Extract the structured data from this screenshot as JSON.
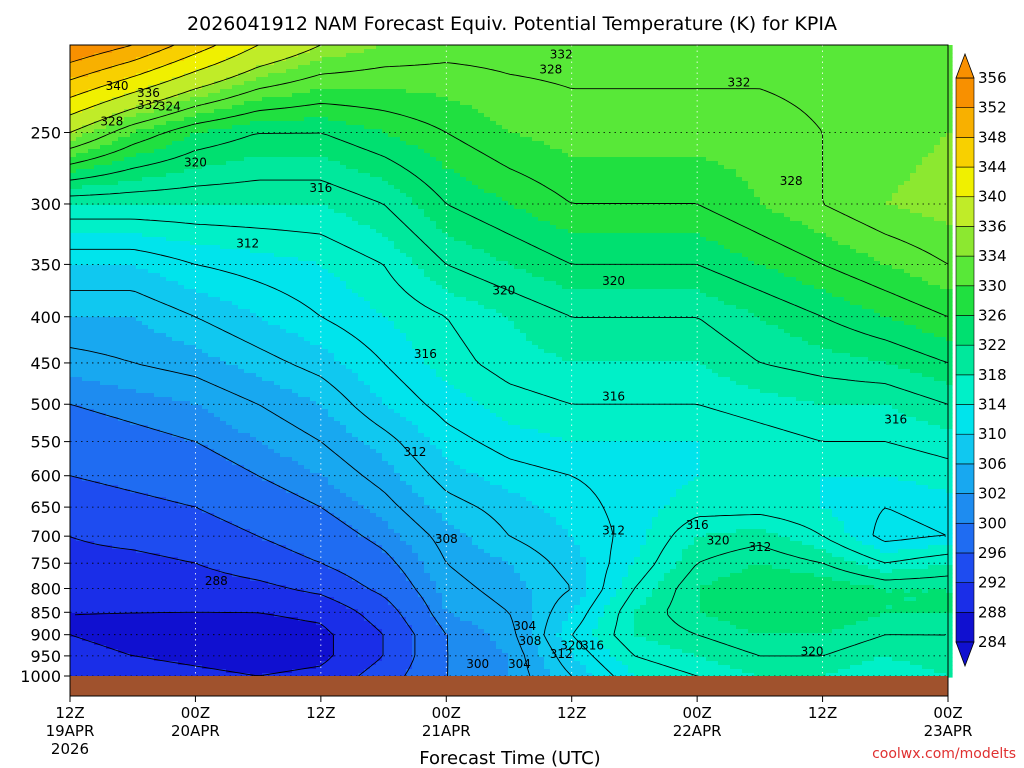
{
  "chart_data": {
    "type": "heatmap",
    "title": "2026041912 NAM Forecast Equiv. Potential Temperature (K) for KPIA",
    "xlabel": "Forecast Time (UTC)",
    "ylabel": "",
    "y_scale": "log-pressure",
    "y_inverted": true,
    "ylim": [
      1000,
      200
    ],
    "y_ticks": [
      250,
      300,
      350,
      400,
      450,
      500,
      550,
      600,
      650,
      700,
      750,
      800,
      850,
      900,
      950,
      1000
    ],
    "x_ticks": [
      {
        "hour": 0,
        "label": "12Z",
        "sub": "19APR",
        "sub2": "2026"
      },
      {
        "hour": 12,
        "label": "00Z",
        "sub": "20APR",
        "sub2": ""
      },
      {
        "hour": 24,
        "label": "12Z",
        "sub": "",
        "sub2": ""
      },
      {
        "hour": 36,
        "label": "00Z",
        "sub": "21APR",
        "sub2": ""
      },
      {
        "hour": 48,
        "label": "12Z",
        "sub": "",
        "sub2": ""
      },
      {
        "hour": 60,
        "label": "00Z",
        "sub": "22APR",
        "sub2": ""
      },
      {
        "hour": 72,
        "label": "12Z",
        "sub": "",
        "sub2": ""
      },
      {
        "hour": 84,
        "label": "00Z",
        "sub": "23APR",
        "sub2": ""
      }
    ],
    "xlim_hours": [
      0,
      84
    ],
    "grid": true,
    "colorbar": {
      "levels": [
        284,
        288,
        292,
        296,
        300,
        302,
        306,
        310,
        314,
        318,
        322,
        326,
        330,
        334,
        336,
        340,
        344,
        348,
        352,
        356
      ],
      "colors": [
        "#1010d0",
        "#1a2ee8",
        "#1e4cf0",
        "#1f6cf2",
        "#1e8cf0",
        "#18a8f0",
        "#10c8f0",
        "#00e4ec",
        "#00f0c8",
        "#00e89c",
        "#00e070",
        "#20e040",
        "#58e838",
        "#8ce830",
        "#c0ec28",
        "#f0f000",
        "#f8d000",
        "#f8b000",
        "#f89000"
      ],
      "label_levels": [
        284,
        288,
        292,
        296,
        300,
        302,
        306,
        310,
        314,
        318,
        322,
        326,
        330,
        334,
        336,
        340,
        344,
        348,
        352,
        356
      ]
    },
    "theta_e_field": {
      "description_units": "K",
      "times_hours": [
        0,
        6,
        12,
        18,
        24,
        30,
        36,
        42,
        48,
        54,
        60,
        66,
        72,
        78,
        84
      ],
      "pressures_hpa": [
        200,
        250,
        300,
        350,
        400,
        450,
        500,
        550,
        600,
        650,
        700,
        750,
        800,
        850,
        900,
        950,
        1000
      ],
      "values": [
        [
          356,
          352,
          346,
          340,
          336,
          334,
          333,
          333,
          333,
          333,
          333,
          333,
          333,
          333,
          333
        ],
        [
          336,
          330,
          326,
          324,
          324,
          326,
          328,
          330,
          331,
          331,
          331,
          331,
          332,
          333,
          334
        ],
        [
          318,
          318,
          318,
          318,
          318,
          320,
          324,
          326,
          328,
          328,
          328,
          330,
          332,
          334,
          335
        ],
        [
          310,
          310,
          312,
          313,
          314,
          316,
          320,
          322,
          324,
          324,
          324,
          326,
          328,
          330,
          332
        ],
        [
          306,
          306,
          308,
          310,
          312,
          314,
          316,
          318,
          320,
          320,
          320,
          322,
          324,
          326,
          328
        ],
        [
          303,
          304,
          305,
          307,
          309,
          312,
          315,
          317,
          318,
          318,
          318,
          320,
          321,
          322,
          324
        ],
        [
          300,
          301,
          302,
          304,
          306,
          310,
          313,
          315,
          316,
          316,
          316,
          317,
          318,
          318,
          320
        ],
        [
          298,
          299,
          300,
          302,
          304,
          307,
          311,
          313,
          314,
          314,
          314,
          315,
          316,
          316,
          317
        ],
        [
          296,
          297,
          298,
          300,
          302,
          305,
          309,
          311,
          312,
          313,
          314,
          314,
          314,
          314,
          315
        ],
        [
          294,
          295,
          296,
          298,
          300,
          303,
          307,
          309,
          311,
          313,
          315,
          315,
          314,
          312,
          313
        ],
        [
          292,
          293,
          294,
          296,
          298,
          301,
          305,
          308,
          310,
          313,
          318,
          319,
          316,
          311,
          312
        ],
        [
          291,
          291,
          292,
          294,
          296,
          299,
          304,
          306,
          309,
          314,
          320,
          322,
          320,
          316,
          318
        ],
        [
          290,
          290,
          290,
          291,
          293,
          297,
          303,
          305,
          308,
          316,
          322,
          324,
          324,
          322,
          322
        ],
        [
          288,
          288,
          288,
          288,
          289,
          294,
          302,
          304,
          310,
          318,
          322,
          324,
          324,
          322,
          322
        ],
        [
          288,
          287,
          286,
          286,
          287,
          292,
          300,
          303,
          312,
          318,
          320,
          322,
          322,
          320,
          320
        ],
        [
          289,
          288,
          287,
          286,
          287,
          292,
          300,
          302,
          310,
          316,
          318,
          320,
          320,
          318,
          320
        ],
        [
          291,
          290,
          289,
          288,
          289,
          294,
          300,
          302,
          308,
          314,
          316,
          318,
          318,
          316,
          318
        ]
      ]
    },
    "contour_labels": [
      {
        "text": "332",
        "hour": 47,
        "p": 205
      },
      {
        "text": "328",
        "hour": 46,
        "p": 213
      },
      {
        "text": "340",
        "hour": 4.5,
        "p": 222
      },
      {
        "text": "336",
        "hour": 7.5,
        "p": 226
      },
      {
        "text": "332",
        "hour": 7.5,
        "p": 233
      },
      {
        "text": "324",
        "hour": 9.5,
        "p": 234
      },
      {
        "text": "328",
        "hour": 4.0,
        "p": 243
      },
      {
        "text": "332",
        "hour": 64,
        "p": 220
      },
      {
        "text": "320",
        "hour": 12,
        "p": 270
      },
      {
        "text": "328",
        "hour": 69,
        "p": 283
      },
      {
        "text": "316",
        "hour": 24,
        "p": 288
      },
      {
        "text": "312",
        "hour": 17,
        "p": 332
      },
      {
        "text": "320",
        "hour": 41.5,
        "p": 374
      },
      {
        "text": "320",
        "hour": 52,
        "p": 365
      },
      {
        "text": "316",
        "hour": 34,
        "p": 440
      },
      {
        "text": "316",
        "hour": 52,
        "p": 490
      },
      {
        "text": "316",
        "hour": 79,
        "p": 520
      },
      {
        "text": "312",
        "hour": 33,
        "p": 565
      },
      {
        "text": "312",
        "hour": 52,
        "p": 690
      },
      {
        "text": "316",
        "hour": 60,
        "p": 680
      },
      {
        "text": "320",
        "hour": 62,
        "p": 708
      },
      {
        "text": "312",
        "hour": 66,
        "p": 720
      },
      {
        "text": "308",
        "hour": 36,
        "p": 705
      },
      {
        "text": "288",
        "hour": 14,
        "p": 785
      },
      {
        "text": "304",
        "hour": 43.5,
        "p": 880
      },
      {
        "text": "308",
        "hour": 44,
        "p": 915
      },
      {
        "text": "320",
        "hour": 48,
        "p": 925
      },
      {
        "text": "316",
        "hour": 50,
        "p": 925
      },
      {
        "text": "312",
        "hour": 47,
        "p": 945
      },
      {
        "text": "320",
        "hour": 71,
        "p": 940
      },
      {
        "text": "300",
        "hour": 39,
        "p": 970
      },
      {
        "text": "304",
        "hour": 43,
        "p": 970
      }
    ],
    "ground_color": "#a0522d"
  },
  "credit": "coolwx.com/modelts"
}
